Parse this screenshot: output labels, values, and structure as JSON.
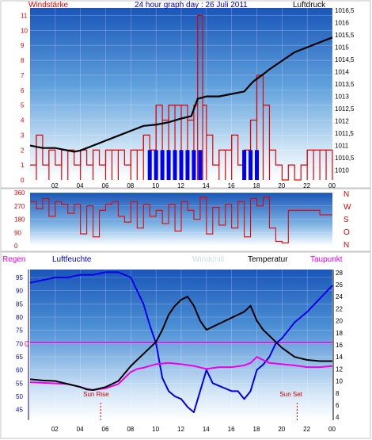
{
  "chart_data": [
    {
      "type": "line",
      "title": "24 hour graph day : 26 Juli 2011",
      "y_left_label": "Windstärke",
      "y_right_label": "Luftdruck",
      "x_ticks": [
        "02",
        "04",
        "06",
        "08",
        "10",
        "12",
        "14",
        "16",
        "18",
        "20",
        "22",
        "00"
      ],
      "y_left_ticks": [
        "0",
        "1",
        "2",
        "3",
        "4",
        "5",
        "6",
        "7",
        "8",
        "9",
        "10",
        "11"
      ],
      "y_left_lim": [
        0,
        11.5
      ],
      "y_right_ticks": [
        "1010",
        "1010,5",
        "1011",
        "1011,5",
        "1012",
        "1012,5",
        "1013",
        "1013,5",
        "1014",
        "1014,5",
        "1015",
        "1015,5",
        "1016",
        "1016,5"
      ],
      "y_right_lim": [
        1009.6,
        1016.6
      ],
      "grid": true,
      "series": [
        {
          "name": "Luftdruck",
          "x_hours": [
            0,
            1,
            2,
            3,
            3.5,
            4,
            5,
            6,
            7,
            8,
            9,
            10,
            11,
            12,
            12.8,
            13.3,
            14,
            15,
            16,
            17,
            17.7,
            18.5,
            19,
            20,
            21,
            22,
            23,
            24
          ],
          "values": [
            1011.0,
            1010.9,
            1010.9,
            1010.8,
            1010.75,
            1010.8,
            1011.0,
            1011.2,
            1011.4,
            1011.6,
            1011.8,
            1011.85,
            1011.95,
            1012.1,
            1012.2,
            1012.9,
            1013.0,
            1013.0,
            1013.1,
            1013.2,
            1013.6,
            1013.9,
            1014.1,
            1014.45,
            1014.8,
            1015.0,
            1015.2,
            1015.4
          ]
        },
        {
          "name": "Windstärke",
          "x_hours": [
            0,
            0.5,
            1,
            1.5,
            2,
            2.5,
            3,
            3.5,
            4,
            4.5,
            5,
            5.5,
            6,
            6.5,
            7,
            7.5,
            8,
            8.5,
            9,
            9.5,
            10,
            10.5,
            11,
            11.5,
            12,
            12.5,
            13,
            13.3,
            13.7,
            14,
            14.5,
            15,
            15.5,
            16,
            16.5,
            17,
            17.5,
            18,
            18.5,
            19,
            19.5,
            20,
            20.5,
            21,
            21.5,
            22,
            22.5,
            23,
            23.5,
            24
          ],
          "values": [
            1,
            3,
            1,
            2,
            1,
            2,
            2,
            1,
            2,
            1,
            2,
            1,
            2,
            2,
            2,
            1,
            2,
            2,
            3,
            2,
            5,
            4,
            5,
            5,
            5,
            4,
            5,
            11,
            5,
            3,
            1,
            2,
            2,
            3,
            1,
            2,
            4,
            7,
            5,
            2,
            1,
            0,
            1,
            0,
            1,
            2,
            2,
            2,
            2,
            2
          ]
        },
        {
          "name": "Windstärke (blau)",
          "x_hours": [
            9.5,
            10,
            10.5,
            11,
            11.5,
            12,
            12.5,
            13,
            13.5,
            17,
            17.5,
            18
          ],
          "values": [
            2,
            2,
            2,
            2,
            2,
            2,
            2,
            2,
            2,
            2,
            2,
            2
          ]
        }
      ]
    },
    {
      "type": "line",
      "title": "",
      "right_labels": [
        "N",
        "W",
        "S",
        "O",
        "N"
      ],
      "y_left_ticks": [
        "0",
        "90",
        "180",
        "270",
        "360"
      ],
      "y_left_lim": [
        0,
        360
      ],
      "x_hours": [
        0,
        0.5,
        1,
        1.5,
        2,
        2.5,
        3,
        3.5,
        4,
        4.5,
        5,
        5.5,
        6,
        6.5,
        7,
        7.5,
        8,
        8.5,
        9,
        9.5,
        10,
        10.5,
        11,
        11.5,
        12,
        12.5,
        13,
        13.5,
        14,
        14.5,
        15,
        15.5,
        16,
        16.5,
        17,
        17.5,
        18,
        18.5,
        19,
        19.5,
        20,
        20.5,
        21,
        21.5,
        22,
        22.5,
        23,
        23.5,
        24
      ],
      "values": [
        300,
        250,
        320,
        200,
        300,
        280,
        220,
        280,
        80,
        270,
        60,
        240,
        280,
        300,
        200,
        160,
        300,
        120,
        280,
        200,
        240,
        150,
        280,
        100,
        300,
        240,
        180,
        330,
        80,
        260,
        140,
        280,
        120,
        300,
        60,
        320,
        270,
        330,
        120,
        30,
        20,
        240,
        240,
        240,
        240,
        240,
        210,
        210,
        210
      ]
    },
    {
      "type": "line",
      "labels": {
        "regen": "Regen",
        "luftfeuchte": "Luftfeuchte",
        "windchill": "Windchill",
        "temperatur": "Temperatur",
        "taupunkt": "Taupunkt",
        "zero": "0"
      },
      "x_ticks": [
        "02",
        "04",
        "06",
        "08",
        "10",
        "12",
        "14",
        "16",
        "18",
        "20",
        "22",
        "00"
      ],
      "y_left_ticks": [
        "45",
        "50",
        "55",
        "60",
        "65",
        "70",
        "75",
        "80",
        "85",
        "90",
        "95"
      ],
      "y_left_lim": [
        41,
        98
      ],
      "y_right_ticks": [
        "4",
        "6",
        "8",
        "10",
        "12",
        "14",
        "16",
        "18",
        "20",
        "22",
        "24",
        "26",
        "28"
      ],
      "y_right_lim": [
        3.5,
        28.5
      ],
      "annotations": [
        {
          "text": "Sun Rise",
          "x_hours": 5.6
        },
        {
          "text": "Sun Set",
          "x_hours": 21.2
        }
      ],
      "colors": {
        "luftfeuchte": "#0000ee",
        "temperatur": "#000000",
        "taupunkt": "#ee00ee",
        "regen": "#ee00ee",
        "windchill": "#c8dcf0"
      },
      "series": [
        {
          "name": "Luftfeuchte",
          "axis": "left",
          "x_hours": [
            0,
            1,
            2,
            3,
            4,
            5,
            6,
            7,
            8,
            8.5,
            9,
            9.5,
            10,
            10.5,
            11,
            11.5,
            12,
            12.5,
            13,
            13.5,
            14,
            14.5,
            15,
            15.5,
            16,
            16.5,
            17,
            17.5,
            18,
            18.5,
            19,
            19.5,
            20,
            21,
            22,
            23,
            24
          ],
          "values": [
            93,
            94,
            95,
            95,
            96,
            96,
            97,
            97,
            95,
            90,
            85,
            77,
            70,
            57,
            52,
            50,
            49,
            46,
            44,
            52,
            60,
            55,
            54,
            53,
            52,
            52,
            49,
            52,
            60,
            62,
            65,
            70,
            72,
            78,
            82,
            87,
            92
          ]
        },
        {
          "name": "Temperatur",
          "axis": "right",
          "x_hours": [
            0,
            1,
            2,
            3,
            4,
            4.5,
            5,
            6,
            7,
            8,
            8.5,
            9,
            9.5,
            10,
            10.5,
            11,
            11.5,
            12,
            12.5,
            13,
            13.5,
            14,
            14.5,
            15,
            15.5,
            16,
            16.5,
            17,
            17.5,
            18,
            18.5,
            19,
            19.5,
            20,
            21,
            22,
            23,
            24
          ],
          "values": [
            10.3,
            10.1,
            10.0,
            9.5,
            9.0,
            8.6,
            8.5,
            9.0,
            10.0,
            12.5,
            13.5,
            14.5,
            15.5,
            16.5,
            18.5,
            21.0,
            22.5,
            23.5,
            24.0,
            22.5,
            20.0,
            18.5,
            19.0,
            19.5,
            20.0,
            20.5,
            21.0,
            21.5,
            22.5,
            20.0,
            18.5,
            17.5,
            16.5,
            15.5,
            14.0,
            13.5,
            13.3,
            13.3
          ]
        },
        {
          "name": "Taupunkt",
          "axis": "right",
          "x_hours": [
            0,
            1,
            2,
            3,
            4,
            4.5,
            5,
            6,
            7,
            8,
            8.5,
            9,
            9.5,
            10,
            11,
            12,
            13,
            14,
            15,
            16,
            17,
            17.5,
            18,
            18.5,
            19,
            20,
            21,
            22,
            23,
            24
          ],
          "values": [
            9.8,
            9.7,
            9.6,
            9.5,
            9.0,
            8.7,
            8.5,
            8.8,
            9.5,
            11.5,
            12.0,
            12.2,
            12.5,
            12.8,
            13.0,
            12.8,
            12.5,
            12.0,
            12.3,
            12.3,
            12.6,
            13.0,
            14.0,
            13.5,
            13.0,
            12.8,
            12.6,
            12.3,
            12.3,
            12.5
          ]
        },
        {
          "name": "Regen",
          "axis": "left",
          "x_hours": [
            0,
            24
          ],
          "values": [
            70.4,
            70.4
          ]
        }
      ]
    }
  ]
}
